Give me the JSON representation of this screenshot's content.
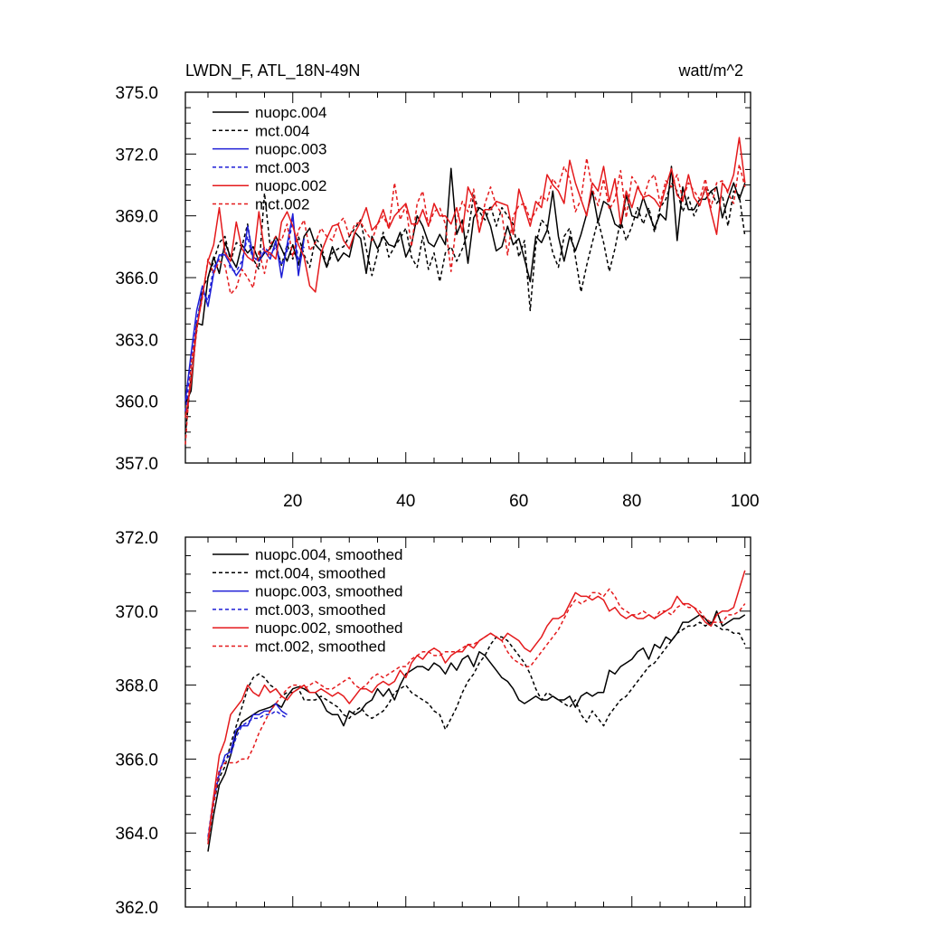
{
  "chart_data": [
    {
      "type": "line",
      "title": "LWDN_F, ATL_18N-49N",
      "units": "watt/m^2",
      "xlim": [
        1,
        101
      ],
      "ylim": [
        357.0,
        375.0
      ],
      "x_ticks": [
        20,
        40,
        60,
        80,
        100
      ],
      "x_tick_labels": [
        "20",
        "40",
        "60",
        "80",
        "100"
      ],
      "y_ticks": [
        357.0,
        360.0,
        363.0,
        366.0,
        369.0,
        372.0,
        375.0
      ],
      "y_tick_labels": [
        "357.0",
        "360.0",
        "363.0",
        "366.0",
        "369.0",
        "372.0",
        "375.0"
      ],
      "legend_position": "top-left",
      "series": [
        {
          "name": "nuopc.004",
          "color": "#000000",
          "dash": "solid",
          "x_start": 1,
          "values": [
            359.9,
            360.5,
            363.8,
            363.7,
            366.0,
            367.0,
            366.2,
            367.7,
            367.0,
            366.5,
            367.6,
            367.2,
            367.5,
            366.8,
            367.2,
            367.4,
            368.0,
            367.4,
            366.8,
            367.6,
            366.6,
            368.0,
            368.4,
            367.6,
            367.3,
            366.5,
            367.5,
            366.8,
            367.2,
            367.0,
            368.2,
            367.9,
            366.2,
            368.0,
            367.4,
            368.0,
            367.6,
            367.5,
            368.2,
            367.0,
            367.6,
            369.0,
            368.5,
            367.7,
            367.5,
            368.1,
            367.6,
            371.3,
            368.1,
            368.8,
            366.7,
            368.9,
            369.4,
            369.2,
            368.5,
            367.3,
            367.5,
            368.5,
            367.6,
            367.9,
            366.9,
            365.8,
            368.0,
            367.7,
            368.3,
            370.2,
            368.0,
            366.8,
            368.0,
            367.3,
            368.1,
            369.1,
            370.2,
            368.7,
            369.7,
            369.5,
            368.6,
            368.4,
            370.0,
            369.0,
            368.9,
            369.9,
            369.1,
            368.4,
            369.1,
            368.8,
            371.4,
            367.8,
            370.4,
            369.3,
            369.3,
            369.8,
            369.8,
            370.2,
            370.4,
            368.9,
            369.8,
            370.6,
            369.8,
            370.6
          ]
        },
        {
          "name": "mct.004",
          "color": "#000000",
          "dash": "dashed",
          "x_start": 1,
          "values": [
            358.4,
            361.2,
            363.4,
            365.5,
            366.0,
            366.8,
            367.7,
            368.0,
            366.8,
            367.7,
            367.5,
            368.6,
            366.9,
            366.4,
            370.1,
            367.5,
            367.6,
            366.6,
            367.6,
            366.9,
            368.0,
            367.1,
            366.5,
            367.9,
            367.6,
            366.5,
            367.2,
            367.4,
            367.5,
            368.0,
            368.4,
            368.8,
            367.4,
            366.1,
            367.2,
            368.2,
            367.0,
            367.5,
            367.9,
            368.4,
            367.0,
            366.5,
            368.0,
            366.4,
            367.2,
            365.8,
            367.2,
            367.5,
            366.8,
            367.4,
            368.2,
            370.0,
            369.2,
            368.8,
            369.5,
            368.5,
            369.4,
            369.0,
            368.6,
            367.0,
            367.8,
            364.4,
            367.6,
            368.8,
            368.5,
            367.2,
            366.5,
            368.0,
            368.4,
            367.0,
            365.3,
            366.6,
            367.7,
            368.8,
            367.7,
            366.3,
            367.4,
            368.8,
            367.8,
            368.5,
            369.4,
            368.6,
            369.4,
            368.2,
            369.4,
            369.8,
            370.6,
            370.2,
            369.2,
            369.9,
            369.0,
            369.6,
            370.3,
            370.2,
            369.6,
            370.0,
            368.5,
            370.2,
            370.0,
            368.0
          ]
        },
        {
          "name": "nuopc.003",
          "color": "#1f1fd6",
          "dash": "solid",
          "x_start": 1,
          "values": [
            360.0,
            362.3,
            364.4,
            365.6,
            364.6,
            366.2,
            367.1,
            367.1,
            366.6,
            366.1,
            366.5,
            368.5,
            367.0,
            366.8,
            367.3,
            366.9,
            367.8,
            366.0,
            367.6,
            369.1,
            366.1,
            367.9
          ]
        },
        {
          "name": "mct.003",
          "color": "#1f1fd6",
          "dash": "dashed",
          "x_start": 1,
          "values": [
            359.5,
            361.8,
            363.9,
            365.3,
            364.9,
            366.5,
            366.9,
            367.4,
            366.4,
            366.3,
            366.8,
            368.0,
            366.8,
            367.0,
            367.5,
            367.1,
            367.5,
            366.6,
            367.3,
            368.8,
            366.8,
            367.5
          ]
        },
        {
          "name": "nuopc.002",
          "color": "#e41a1c",
          "dash": "solid",
          "x_start": 1,
          "values": [
            359.2,
            360.9,
            363.5,
            365.1,
            366.8,
            367.6,
            369.4,
            367.2,
            366.8,
            368.7,
            367.4,
            367.0,
            366.8,
            369.2,
            367.3,
            367.2,
            366.9,
            368.7,
            369.2,
            368.5,
            367.6,
            367.0,
            365.6,
            365.3,
            367.2,
            367.9,
            368.5,
            368.6,
            367.8,
            367.4,
            368.2,
            368.7,
            369.4,
            368.3,
            368.6,
            369.3,
            368.4,
            369.0,
            369.3,
            369.6,
            368.6,
            368.6,
            369.3,
            368.5,
            369.6,
            369.0,
            369.0,
            368.6,
            369.4,
            368.2,
            370.4,
            369.8,
            368.2,
            369.3,
            369.3,
            369.7,
            369.6,
            369.5,
            368.1,
            370.3,
            369.4,
            368.5,
            369.7,
            369.4,
            371.0,
            370.5,
            370.2,
            369.6,
            371.7,
            370.6,
            369.8,
            369.0,
            370.6,
            370.2,
            371.4,
            369.7,
            370.8,
            368.6,
            370.2,
            369.4,
            370.4,
            369.9,
            370.0,
            369.8,
            369.4,
            370.4,
            371.3,
            370.0,
            369.7,
            371.0,
            369.9,
            369.5,
            370.4,
            369.2,
            368.1,
            370.6,
            370.2,
            371.0,
            372.8,
            370.6
          ]
        },
        {
          "name": "mct.002",
          "color": "#e41a1c",
          "dash": "dashed",
          "x_start": 1,
          "values": [
            357.9,
            361.8,
            363.6,
            365.0,
            366.9,
            366.2,
            366.8,
            366.6,
            365.2,
            365.5,
            366.4,
            366.0,
            365.5,
            367.3,
            366.2,
            367.6,
            368.0,
            367.8,
            368.6,
            367.0,
            368.3,
            368.8,
            367.3,
            367.7,
            368.4,
            368.0,
            367.8,
            368.6,
            368.9,
            368.0,
            368.6,
            368.7,
            368.2,
            367.8,
            368.6,
            369.0,
            368.4,
            370.6,
            368.8,
            369.5,
            367.5,
            369.6,
            370.2,
            368.5,
            369.2,
            369.4,
            368.6,
            366.3,
            368.8,
            369.7,
            369.2,
            370.3,
            368.2,
            369.6,
            370.4,
            369.5,
            369.1,
            367.1,
            369.0,
            369.5,
            369.6,
            368.8,
            369.2,
            370.0,
            369.7,
            370.8,
            370.4,
            371.4,
            370.8,
            369.2,
            369.8,
            371.8,
            370.3,
            369.5,
            370.8,
            369.3,
            369.8,
            371.2,
            368.9,
            370.9,
            370.5,
            369.8,
            370.7,
            371.0,
            369.6,
            370.7,
            370.4,
            371.0,
            369.8,
            370.6,
            370.2,
            369.8,
            370.8,
            369.4,
            370.6,
            370.7,
            370.1,
            369.6,
            371.5,
            370.4
          ]
        }
      ]
    },
    {
      "type": "line",
      "title": "",
      "xlim": [
        1,
        101
      ],
      "ylim": [
        362.0,
        372.0
      ],
      "x_ticks": [
        20,
        40,
        60,
        80,
        100
      ],
      "x_tick_labels": [],
      "y_ticks": [
        362.0,
        364.0,
        366.0,
        368.0,
        370.0,
        372.0
      ],
      "y_tick_labels": [
        "362.0",
        "364.0",
        "366.0",
        "368.0",
        "370.0",
        "372.0"
      ],
      "legend_position": "top-left",
      "series": [
        {
          "name": "nuopc.004, smoothed",
          "color": "#000000",
          "dash": "solid",
          "x_start": 5,
          "values": [
            363.5,
            364.5,
            365.3,
            365.6,
            366.1,
            366.7,
            367.0,
            367.1,
            367.2,
            367.3,
            367.35,
            367.4,
            367.5,
            367.4,
            367.7,
            367.9,
            367.95,
            367.9,
            367.8,
            367.8,
            367.6,
            367.3,
            367.2,
            367.2,
            366.9,
            367.3,
            367.2,
            367.3,
            367.5,
            367.6,
            367.9,
            367.7,
            367.9,
            367.6,
            368.0,
            368.3,
            368.4,
            368.5,
            368.5,
            368.4,
            368.6,
            368.5,
            368.3,
            368.6,
            368.4,
            368.7,
            368.8,
            368.5,
            368.9,
            368.8,
            368.6,
            368.4,
            368.2,
            368.1,
            367.9,
            367.6,
            367.5,
            367.6,
            367.7,
            367.6,
            367.6,
            367.7,
            367.6,
            367.6,
            367.7,
            367.4,
            367.7,
            367.8,
            367.7,
            367.8,
            367.8,
            368.4,
            368.3,
            368.5,
            368.6,
            368.7,
            368.9,
            369.0,
            368.7,
            369.1,
            369.0,
            369.3,
            369.2,
            369.4,
            369.7,
            369.7,
            369.8,
            369.9,
            369.8,
            369.6,
            370.0,
            369.6,
            369.7,
            369.8,
            369.8,
            369.9
          ]
        },
        {
          "name": "mct.004, smoothed",
          "color": "#000000",
          "dash": "dashed",
          "x_start": 5,
          "values": [
            363.7,
            364.8,
            365.5,
            365.8,
            366.4,
            366.9,
            367.4,
            367.9,
            368.2,
            368.3,
            368.2,
            368.0,
            367.9,
            367.7,
            367.8,
            367.8,
            367.9,
            367.6,
            367.6,
            367.6,
            367.7,
            367.6,
            367.5,
            367.4,
            367.2,
            367.1,
            367.3,
            367.4,
            367.2,
            367.1,
            367.2,
            367.3,
            367.5,
            367.8,
            367.9,
            368.0,
            367.8,
            367.7,
            367.6,
            367.5,
            367.3,
            367.2,
            366.8,
            367.1,
            367.4,
            367.8,
            368.1,
            368.3,
            368.6,
            368.8,
            369.1,
            369.3,
            369.3,
            369.2,
            369.0,
            368.8,
            368.6,
            368.3,
            367.9,
            367.6,
            367.8,
            367.7,
            367.6,
            367.5,
            367.4,
            367.6,
            367.2,
            367.0,
            367.3,
            367.1,
            366.9,
            367.2,
            367.4,
            367.6,
            367.7,
            367.9,
            368.1,
            368.3,
            368.5,
            368.6,
            368.8,
            369.0,
            369.2,
            369.4,
            369.5,
            369.6,
            369.6,
            369.7,
            369.6,
            369.7,
            369.6,
            369.5,
            369.5,
            369.4,
            369.4,
            369.1
          ]
        },
        {
          "name": "nuopc.003, smoothed",
          "color": "#1f1fd6",
          "dash": "solid",
          "x_start": 5,
          "values": [
            363.8,
            364.9,
            365.6,
            366.1,
            366.2,
            366.8,
            366.9,
            366.9,
            367.2,
            367.2,
            367.3,
            367.3,
            367.5,
            367.3,
            367.2
          ]
        },
        {
          "name": "mct.003, smoothed",
          "color": "#1f1fd6",
          "dash": "dashed",
          "x_start": 5,
          "values": [
            363.9,
            365.0,
            365.7,
            366.0,
            366.1,
            366.6,
            366.9,
            367.0,
            367.1,
            367.1,
            367.2,
            367.2,
            367.3,
            367.2,
            367.1
          ]
        },
        {
          "name": "nuopc.002, smoothed",
          "color": "#e41a1c",
          "dash": "solid",
          "x_start": 5,
          "values": [
            363.8,
            365.0,
            366.1,
            366.5,
            367.2,
            367.4,
            367.6,
            368.0,
            367.8,
            367.7,
            368.0,
            367.8,
            367.9,
            367.7,
            367.6,
            367.8,
            367.9,
            368.0,
            367.8,
            367.8,
            367.9,
            367.8,
            367.7,
            367.8,
            367.7,
            367.5,
            367.7,
            367.9,
            367.9,
            367.8,
            368.0,
            368.1,
            368.0,
            368.1,
            368.4,
            368.2,
            368.6,
            368.8,
            368.7,
            368.9,
            369.0,
            368.9,
            368.6,
            368.8,
            368.9,
            368.9,
            369.1,
            369.0,
            369.2,
            369.3,
            369.4,
            369.3,
            369.2,
            369.4,
            369.3,
            369.2,
            369.0,
            368.9,
            369.1,
            369.3,
            369.6,
            369.8,
            369.8,
            369.9,
            370.2,
            370.5,
            370.4,
            370.4,
            370.3,
            370.4,
            370.3,
            370.0,
            370.1,
            369.9,
            369.8,
            369.9,
            369.8,
            369.8,
            369.9,
            369.8,
            369.9,
            370.0,
            370.1,
            370.4,
            370.2,
            370.2,
            370.1,
            369.9,
            369.7,
            369.6,
            369.9,
            370.0,
            370.0,
            370.1,
            370.6,
            371.1
          ]
        },
        {
          "name": "mct.002, smoothed",
          "color": "#e41a1c",
          "dash": "dashed",
          "x_start": 5,
          "values": [
            363.7,
            364.8,
            365.7,
            365.9,
            365.9,
            365.9,
            366.0,
            366.0,
            366.3,
            366.7,
            367.0,
            367.3,
            367.5,
            367.7,
            367.9,
            368.0,
            368.0,
            367.9,
            368.0,
            368.1,
            368.0,
            367.9,
            367.9,
            368.0,
            368.1,
            368.2,
            368.0,
            367.9,
            368.0,
            368.2,
            368.3,
            368.2,
            368.3,
            368.4,
            368.5,
            368.5,
            368.7,
            368.8,
            368.9,
            368.9,
            368.8,
            368.8,
            368.9,
            368.9,
            368.9,
            369.0,
            369.1,
            369.1,
            369.2,
            369.3,
            369.4,
            369.3,
            369.2,
            368.9,
            368.7,
            368.6,
            368.5,
            368.5,
            368.7,
            368.9,
            369.1,
            369.3,
            369.5,
            369.8,
            370.1,
            370.3,
            370.2,
            370.3,
            370.5,
            370.5,
            370.4,
            370.6,
            370.4,
            370.1,
            370.0,
            369.9,
            369.9,
            370.0,
            369.9,
            369.8,
            370.0,
            370.0,
            369.9,
            370.1,
            370.2,
            370.1,
            370.1,
            370.0,
            369.8,
            369.7,
            369.7,
            369.7,
            369.9,
            369.9,
            370.0,
            370.2
          ]
        }
      ]
    }
  ]
}
